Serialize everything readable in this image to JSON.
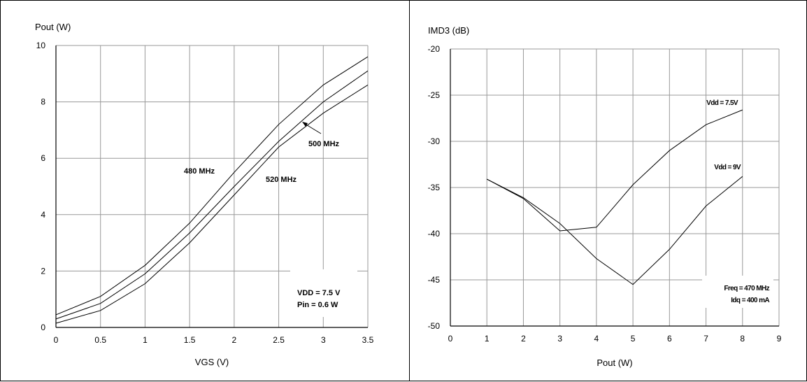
{
  "chart_data": [
    {
      "type": "line",
      "title": "",
      "xlabel": "VGS (V)",
      "ylabel": "Pout (W)",
      "xlim": [
        0,
        3.5
      ],
      "ylim": [
        0,
        10
      ],
      "x_ticks": [
        "0",
        "0.5",
        "1",
        "1.5",
        "2",
        "2.5",
        "3",
        "3.5"
      ],
      "y_ticks": [
        "0",
        "2",
        "4",
        "6",
        "8",
        "10"
      ],
      "grid": true,
      "x": [
        0,
        0.5,
        1,
        1.5,
        2,
        2.5,
        3,
        3.5
      ],
      "series": [
        {
          "name": "480 MHz",
          "values": [
            0.45,
            1.1,
            2.2,
            3.7,
            5.5,
            7.2,
            8.6,
            9.6
          ]
        },
        {
          "name": "500 MHz",
          "values": [
            0.3,
            0.85,
            1.9,
            3.35,
            5.0,
            6.6,
            8.0,
            9.1
          ]
        },
        {
          "name": "520 MHz",
          "values": [
            0.15,
            0.6,
            1.55,
            3.0,
            4.7,
            6.4,
            7.6,
            8.6
          ]
        }
      ],
      "annotations": [
        "480 MHz",
        "500 MHz",
        "520 MHz"
      ],
      "legend_box": [
        "VDD = 7.5 V",
        "Pin = 0.6 W"
      ]
    },
    {
      "type": "line",
      "title": "",
      "xlabel": "Pout (W)",
      "ylabel": "IMD3 (dB)",
      "xlim": [
        0,
        9
      ],
      "ylim": [
        -50,
        -20
      ],
      "x_ticks": [
        "0",
        "1",
        "2",
        "3",
        "4",
        "5",
        "6",
        "7",
        "8",
        "9"
      ],
      "y_ticks": [
        "-20",
        "-25",
        "-30",
        "-35",
        "-40",
        "-45",
        "-50"
      ],
      "grid": true,
      "series": [
        {
          "name": "Vdd = 7.5V",
          "x": [
            1,
            2,
            3,
            4,
            5,
            6,
            7,
            8
          ],
          "values": [
            -34.1,
            -36.1,
            -38.9,
            -42.7,
            -45.5,
            -41.7,
            -37.0,
            -33.8
          ]
        },
        {
          "name": "Vdd = 9V",
          "x": [
            1,
            2,
            3,
            4,
            5,
            6,
            7,
            8
          ],
          "values": [
            -34.1,
            -36.2,
            -39.7,
            -39.3,
            -34.7,
            -31.0,
            -28.2,
            -26.6
          ]
        }
      ],
      "annotations": [
        "Vdd = 7.5V",
        "Vdd = 9V"
      ],
      "legend_box": [
        "Freq = 470 MHz",
        "Idq = 400 mA"
      ]
    }
  ]
}
